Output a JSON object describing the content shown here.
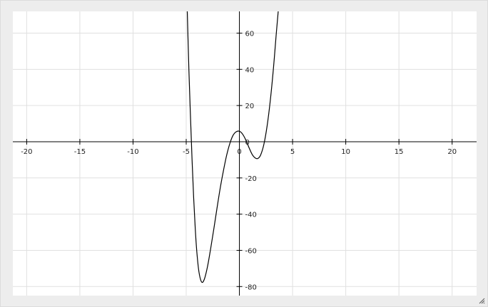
{
  "chart_data": {
    "type": "line",
    "title": "",
    "xlabel": "",
    "ylabel": "",
    "xlim": [
      -21.3,
      22.3
    ],
    "ylim": [
      -85,
      72
    ],
    "grid": true,
    "x_ticks": [
      -20,
      -15,
      -10,
      -5,
      0,
      5,
      10,
      15,
      20
    ],
    "x_tick_labels": [
      "-20",
      "-15",
      "-10",
      "-5",
      "0",
      "5",
      "10",
      "15",
      "20"
    ],
    "y_ticks": [
      60,
      40,
      20,
      0,
      -20,
      -40,
      -60,
      -80
    ],
    "y_tick_labels": [
      "60",
      "40",
      "20",
      "0",
      "-20",
      "-40",
      "-60",
      "-80"
    ],
    "series": [
      {
        "name": "",
        "color": "#000000",
        "points": [
          [
            -4.9,
            72
          ],
          [
            -4.75,
            40
          ],
          [
            -4.6,
            14
          ],
          [
            -4.45,
            -10
          ],
          [
            -4.3,
            -31
          ],
          [
            -4.15,
            -48
          ],
          [
            -4.0,
            -61
          ],
          [
            -3.8,
            -72
          ],
          [
            -3.55,
            -77.5
          ],
          [
            -3.3,
            -76
          ],
          [
            -3.0,
            -69
          ],
          [
            -2.7,
            -59
          ],
          [
            -2.4,
            -48
          ],
          [
            -2.1,
            -36.5
          ],
          [
            -1.8,
            -25.5
          ],
          [
            -1.5,
            -16
          ],
          [
            -1.2,
            -7.5
          ],
          [
            -0.9,
            -1
          ],
          [
            -0.6,
            3.5
          ],
          [
            -0.3,
            5.5
          ],
          [
            0.0,
            5.8
          ],
          [
            0.3,
            4.2
          ],
          [
            0.6,
            1.0
          ],
          [
            0.9,
            -3.2
          ],
          [
            1.2,
            -7.0
          ],
          [
            1.5,
            -9.0
          ],
          [
            1.75,
            -9.2
          ],
          [
            2.0,
            -7.3
          ],
          [
            2.3,
            -1.5
          ],
          [
            2.6,
            8.5
          ],
          [
            2.9,
            22.5
          ],
          [
            3.2,
            40.5
          ],
          [
            3.45,
            58.5
          ],
          [
            3.65,
            72
          ]
        ]
      }
    ]
  }
}
